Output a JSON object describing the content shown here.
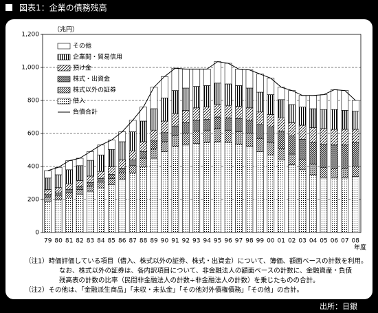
{
  "chart_data": {
    "type": "bar",
    "stacked": true,
    "title": "図表1：企業の債務残高",
    "unit_label": "（兆円）",
    "x_axis_label": "年度",
    "categories": [
      "79",
      "80",
      "81",
      "82",
      "83",
      "84",
      "85",
      "86",
      "87",
      "88",
      "89",
      "90",
      "91",
      "92",
      "93",
      "94",
      "95",
      "96",
      "97",
      "98",
      "99",
      "00",
      "01",
      "02",
      "03",
      "04",
      "05",
      "06",
      "07",
      "08"
    ],
    "series": [
      {
        "name": "借入",
        "color": "#000000",
        "pattern": "dots",
        "values": [
          190,
          200,
          215,
          230,
          250,
          270,
          290,
          320,
          360,
          400,
          450,
          490,
          520,
          530,
          540,
          545,
          550,
          545,
          535,
          520,
          490,
          470,
          440,
          410,
          380,
          350,
          330,
          330,
          330,
          340
        ]
      },
      {
        "name": "株式以外の証券",
        "color": "#000000",
        "pattern": "diag-dense",
        "values": [
          25,
          25,
          28,
          30,
          32,
          35,
          38,
          42,
          45,
          50,
          55,
          60,
          65,
          70,
          75,
          75,
          80,
          75,
          75,
          80,
          80,
          75,
          70,
          65,
          65,
          65,
          65,
          60,
          60,
          60
        ]
      },
      {
        "name": "株式・出資金",
        "color": "#000000",
        "pattern": "cross",
        "values": [
          15,
          15,
          17,
          18,
          20,
          22,
          25,
          28,
          35,
          40,
          50,
          55,
          60,
          65,
          65,
          65,
          70,
          75,
          80,
          80,
          85,
          95,
          105,
          110,
          120,
          130,
          140,
          140,
          140,
          145
        ]
      },
      {
        "name": "預け金",
        "color": "#000000",
        "pattern": "diag",
        "values": [
          30,
          32,
          35,
          37,
          40,
          43,
          45,
          50,
          55,
          60,
          65,
          70,
          75,
          75,
          75,
          75,
          75,
          75,
          75,
          75,
          75,
          75,
          80,
          80,
          85,
          90,
          95,
          95,
          95,
          80
        ]
      },
      {
        "name": "企業間・貿易信用",
        "color": "#000000",
        "pattern": "vstripe",
        "values": [
          70,
          78,
          85,
          90,
          95,
          100,
          105,
          110,
          115,
          125,
          130,
          140,
          140,
          135,
          130,
          130,
          130,
          130,
          125,
          120,
          120,
          120,
          110,
          110,
          110,
          115,
          115,
          120,
          115,
          110
        ]
      },
      {
        "name": "その他",
        "color": "#ffffff",
        "pattern": "none",
        "values": [
          45,
          45,
          55,
          45,
          53,
          60,
          57,
          60,
          70,
          85,
          130,
          130,
          135,
          115,
          105,
          100,
          130,
          125,
          100,
          110,
          110,
          100,
          75,
          85,
          70,
          80,
          90,
          120,
          120,
          65
        ]
      }
    ],
    "line_series": {
      "name": "負債合計",
      "color": "#000000",
      "values": [
        375,
        395,
        435,
        450,
        490,
        530,
        560,
        610,
        680,
        760,
        880,
        945,
        995,
        990,
        990,
        990,
        1035,
        1025,
        990,
        985,
        960,
        935,
        880,
        860,
        830,
        830,
        835,
        865,
        860,
        800
      ]
    },
    "ylim": [
      0,
      1200
    ],
    "yticks": [
      0,
      200,
      400,
      600,
      800,
      {
        "value": 1000,
        "label": "1,000"
      },
      {
        "value": 1200,
        "label": "1,200"
      }
    ],
    "grid": true,
    "notes": [
      "（注1）時価評価している項目（借入、株式以外の証券、株式・出資金）について、簿価、額面ベースの計数を利用。",
      "なお、株式以外の証券は、各内訳項目について、非金融法人の額面ベースの計数に、金融資産・負債",
      "残高表の計数の比率（民間非金融法人の計数÷非金融法人の計数）を乗じたものの合計。",
      "（注2）その他は、「金融派生商品」「未収・未払金」「その他対外債権債務」「その他」の合計。"
    ],
    "source": "出所：日銀"
  }
}
